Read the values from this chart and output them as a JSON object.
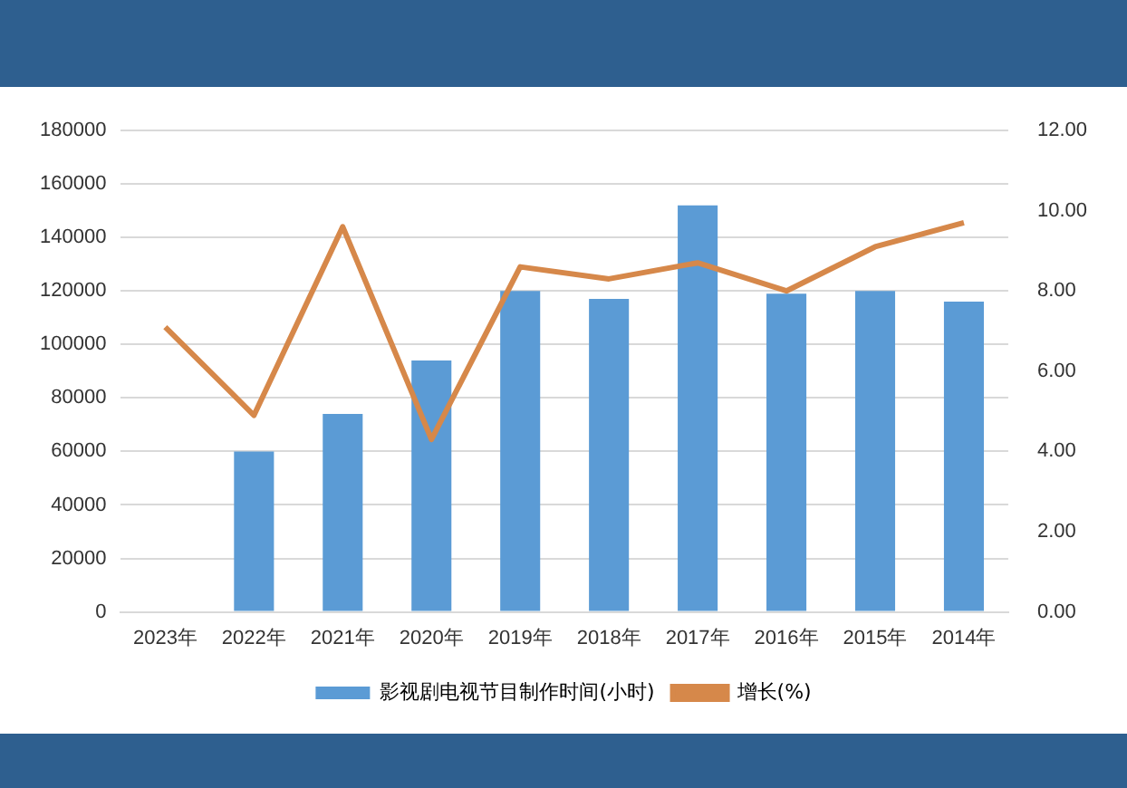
{
  "chart_data": {
    "type": "bar",
    "categories": [
      "2023年",
      "2022年",
      "2021年",
      "2020年",
      "2019年",
      "2018年",
      "2017年",
      "2016年",
      "2015年",
      "2014年"
    ],
    "series": [
      {
        "name": "影视剧电视节目制作时间(小时)",
        "color": "#5b9bd5",
        "values": [
          null,
          60000,
          74000,
          94000,
          120000,
          117000,
          152000,
          119000,
          120000,
          116000
        ]
      },
      {
        "name": "增长(%)",
        "color": "#d6884a",
        "type": "line",
        "axis": "y2",
        "values": [
          7.1,
          4.9,
          9.6,
          4.3,
          8.6,
          8.3,
          8.7,
          8.0,
          9.1,
          9.7
        ]
      }
    ],
    "ylim": [
      0,
      180000
    ],
    "yticks": [
      0,
      20000,
      40000,
      60000,
      80000,
      100000,
      120000,
      140000,
      160000,
      180000
    ],
    "y2lim": [
      0,
      12
    ],
    "y2ticks": [
      {
        "value": 0,
        "label": "0.00"
      },
      {
        "value": 2,
        "label": "2.00"
      },
      {
        "value": 4,
        "label": "4.00"
      },
      {
        "value": 6,
        "label": "6.00"
      },
      {
        "value": 8,
        "label": "8.00"
      },
      {
        "value": 10,
        "label": "10.00"
      },
      {
        "value": 12,
        "label": "12.00"
      }
    ],
    "grid": "y",
    "legend": "bottom",
    "marker": "none",
    "line_style": "solid"
  }
}
